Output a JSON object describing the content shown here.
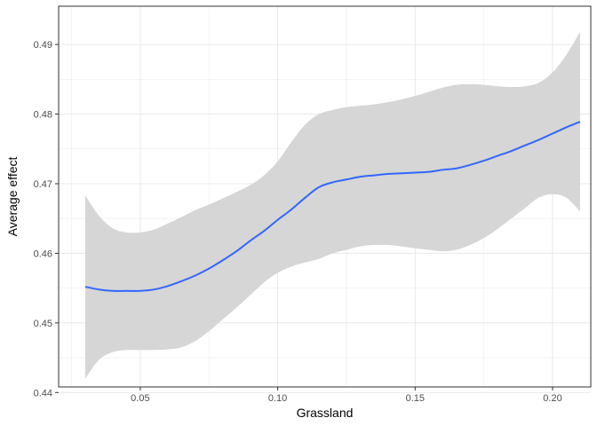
{
  "chart_data": {
    "type": "line",
    "title": "",
    "xlabel": "Grassland",
    "ylabel": "Average effect",
    "xlim": [
      0.0203,
      0.2139
    ],
    "ylim": [
      0.4408,
      0.4955
    ],
    "grid": true,
    "x_ticks": [
      {
        "value": 0.05,
        "label": "0.05"
      },
      {
        "value": 0.1,
        "label": "0.10"
      },
      {
        "value": 0.15,
        "label": "0.15"
      },
      {
        "value": 0.2,
        "label": "0.20"
      }
    ],
    "y_ticks": [
      {
        "value": 0.44,
        "label": "0.44"
      },
      {
        "value": 0.45,
        "label": "0.45"
      },
      {
        "value": 0.46,
        "label": "0.46"
      },
      {
        "value": 0.47,
        "label": "0.47"
      },
      {
        "value": 0.48,
        "label": "0.48"
      },
      {
        "value": 0.49,
        "label": "0.49"
      }
    ],
    "x": [
      0.03,
      0.035,
      0.04,
      0.045,
      0.05,
      0.055,
      0.06,
      0.065,
      0.07,
      0.075,
      0.08,
      0.085,
      0.09,
      0.095,
      0.1,
      0.105,
      0.11,
      0.115,
      0.12,
      0.125,
      0.13,
      0.135,
      0.14,
      0.145,
      0.15,
      0.155,
      0.16,
      0.165,
      0.17,
      0.175,
      0.18,
      0.185,
      0.19,
      0.195,
      0.2,
      0.205,
      0.21
    ],
    "series": [
      {
        "values": [
          0.4552,
          0.4548,
          0.4546,
          0.4546,
          0.4546,
          0.4548,
          0.4553,
          0.456,
          0.4568,
          0.4578,
          0.459,
          0.4603,
          0.4618,
          0.4632,
          0.4648,
          0.4663,
          0.468,
          0.4695,
          0.4702,
          0.4706,
          0.471,
          0.4712,
          0.4714,
          0.4715,
          0.4716,
          0.4717,
          0.472,
          0.4722,
          0.4727,
          0.4733,
          0.474,
          0.4747,
          0.4755,
          0.4763,
          0.4772,
          0.4781,
          0.4789
        ],
        "ci_low": [
          0.442,
          0.4447,
          0.4458,
          0.4461,
          0.4461,
          0.4461,
          0.4462,
          0.4465,
          0.4474,
          0.4488,
          0.4505,
          0.4522,
          0.454,
          0.4558,
          0.4572,
          0.4581,
          0.4587,
          0.4592,
          0.46,
          0.4605,
          0.461,
          0.4612,
          0.4612,
          0.461,
          0.4607,
          0.4605,
          0.4603,
          0.4605,
          0.4612,
          0.4622,
          0.4635,
          0.465,
          0.4665,
          0.468,
          0.4685,
          0.468,
          0.466
        ],
        "ci_high": [
          0.4683,
          0.4654,
          0.4636,
          0.463,
          0.463,
          0.4634,
          0.4643,
          0.4652,
          0.4662,
          0.467,
          0.4679,
          0.4688,
          0.4698,
          0.4712,
          0.4732,
          0.476,
          0.4785,
          0.48,
          0.4806,
          0.481,
          0.4812,
          0.4814,
          0.4817,
          0.4821,
          0.4826,
          0.4832,
          0.4838,
          0.4842,
          0.4843,
          0.4842,
          0.484,
          0.4839,
          0.484,
          0.4845,
          0.486,
          0.4885,
          0.4918
        ]
      }
    ],
    "colors": {
      "line": "#3366ff",
      "ribbon": "#d6d6d6",
      "grid": "#ebebeb",
      "panel_border": "#333333",
      "tick_text": "#4d4d4d",
      "title_text": "#000000"
    }
  }
}
